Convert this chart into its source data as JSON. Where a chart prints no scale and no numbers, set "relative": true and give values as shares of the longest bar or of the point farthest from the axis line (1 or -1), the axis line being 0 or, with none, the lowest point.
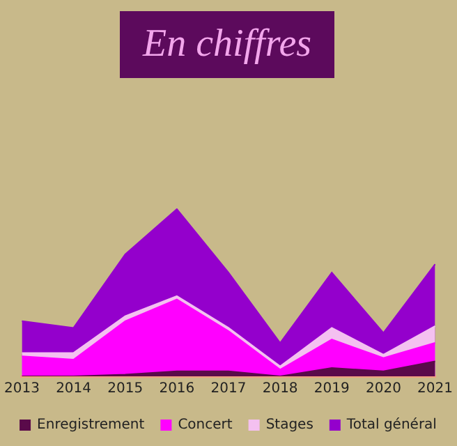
{
  "chart_data": {
    "type": "area",
    "title": "En chiffres",
    "relative": true,
    "categories": [
      "2013",
      "2014",
      "2015",
      "2016",
      "2017",
      "2018",
      "2019",
      "2020",
      "2021"
    ],
    "series": [
      {
        "name": "Enregistrement",
        "color": "#5a0a4a",
        "values": [
          0,
          0,
          0.01,
          0.03,
          0.03,
          0,
          0.05,
          0.03,
          0.09
        ]
      },
      {
        "name": "Concert",
        "color": "#ff00ff",
        "values": [
          0.12,
          0.1,
          0.33,
          0.46,
          0.27,
          0.04,
          0.22,
          0.11,
          0.2
        ]
      },
      {
        "name": "Stages",
        "color": "#f4c0f0",
        "values": [
          0.14,
          0.14,
          0.36,
          0.48,
          0.29,
          0.06,
          0.29,
          0.13,
          0.3
        ]
      },
      {
        "name": "Total général",
        "color": "#9400cc",
        "values": [
          0.33,
          0.29,
          0.73,
          1,
          0.62,
          0.2,
          0.62,
          0.26,
          0.67
        ]
      }
    ],
    "legend": "bottom",
    "grid": false,
    "marker": "none"
  }
}
